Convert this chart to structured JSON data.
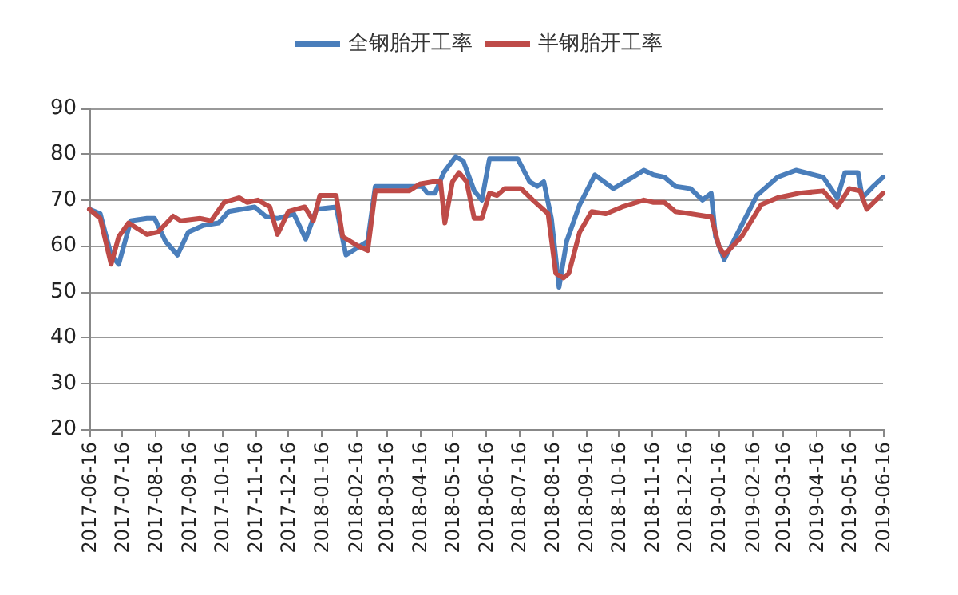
{
  "chart_data": {
    "type": "line",
    "series": [
      {
        "name": "全钢胎开工率",
        "color": "#4a7ebb",
        "x": [
          "2017-06-16",
          "2017-06-26",
          "2017-07-06",
          "2017-07-13",
          "2017-07-24",
          "2017-08-08",
          "2017-08-15",
          "2017-08-25",
          "2017-09-05",
          "2017-09-15",
          "2017-09-29",
          "2017-10-13",
          "2017-10-22",
          "2017-11-15",
          "2017-11-25",
          "2017-12-06",
          "2017-12-21",
          "2018-01-01",
          "2018-01-11",
          "2018-01-29",
          "2018-02-07",
          "2018-02-27",
          "2018-03-06",
          "2018-04-18",
          "2018-04-23",
          "2018-04-30",
          "2018-05-08",
          "2018-05-19",
          "2018-05-26",
          "2018-06-05",
          "2018-06-12",
          "2018-06-19",
          "2018-07-15",
          "2018-07-26",
          "2018-08-02",
          "2018-08-08",
          "2018-08-15",
          "2018-08-22",
          "2018-08-29",
          "2018-09-10",
          "2018-09-24",
          "2018-10-08",
          "2018-10-11",
          "2018-10-29",
          "2018-11-08",
          "2018-11-17",
          "2018-11-27",
          "2018-12-07",
          "2018-12-21",
          "2019-01-01",
          "2019-01-09",
          "2019-01-13",
          "2019-01-21",
          "2019-02-06",
          "2019-02-20",
          "2019-03-11",
          "2019-03-28",
          "2019-04-22",
          "2019-05-05",
          "2019-05-12",
          "2019-05-24",
          "2019-05-28",
          "2019-06-07",
          "2019-06-16"
        ],
        "values": [
          68,
          67,
          58,
          56,
          65.5,
          66,
          66,
          61,
          58,
          63,
          64.5,
          65,
          67.5,
          68.5,
          66.5,
          66,
          67,
          61.5,
          68,
          68.5,
          58,
          61,
          73,
          73,
          71.5,
          71.5,
          76,
          79.5,
          78.5,
          72,
          70,
          79,
          79,
          74,
          73,
          74,
          66,
          51,
          61,
          69,
          75.5,
          73,
          72.5,
          75,
          76.5,
          75.5,
          75,
          73,
          72.5,
          70,
          71.5,
          62,
          57,
          64.5,
          71,
          75,
          76.5,
          75,
          70.5,
          76,
          76,
          70.5,
          73,
          75
        ]
      },
      {
        "name": "半钢胎开工率",
        "color": "#be4b48",
        "x": [
          "2017-06-16",
          "2017-06-26",
          "2017-07-06",
          "2017-07-13",
          "2017-07-22",
          "2017-08-08",
          "2017-08-18",
          "2017-09-01",
          "2017-09-08",
          "2017-09-26",
          "2017-10-06",
          "2017-10-18",
          "2017-11-01",
          "2017-11-08",
          "2017-11-18",
          "2017-11-29",
          "2017-12-06",
          "2017-12-16",
          "2017-12-31",
          "2018-01-08",
          "2018-01-14",
          "2018-01-29",
          "2018-02-04",
          "2018-02-18",
          "2018-02-27",
          "2018-03-06",
          "2018-04-06",
          "2018-04-16",
          "2018-04-28",
          "2018-05-05",
          "2018-05-09",
          "2018-05-16",
          "2018-05-22",
          "2018-05-29",
          "2018-06-05",
          "2018-06-12",
          "2018-06-19",
          "2018-06-26",
          "2018-07-03",
          "2018-07-18",
          "2018-07-29",
          "2018-08-12",
          "2018-08-19",
          "2018-08-26",
          "2018-08-31",
          "2018-09-10",
          "2018-09-21",
          "2018-10-04",
          "2018-10-19",
          "2018-11-08",
          "2018-11-17",
          "2018-11-27",
          "2018-12-07",
          "2018-12-21",
          "2019-01-04",
          "2019-01-09",
          "2019-01-16",
          "2019-01-21",
          "2019-02-06",
          "2019-02-24",
          "2019-03-11",
          "2019-03-31",
          "2019-04-22",
          "2019-05-05",
          "2019-05-16",
          "2019-05-26",
          "2019-06-01",
          "2019-06-16"
        ],
        "values": [
          68,
          66,
          56,
          62,
          65,
          62.5,
          63,
          66.5,
          65.5,
          66,
          65.5,
          69.5,
          70.5,
          69.5,
          70,
          68.5,
          62.5,
          67.5,
          68.5,
          65.5,
          71,
          71,
          62,
          60,
          59,
          72,
          72,
          73.5,
          74,
          74,
          65,
          74,
          76,
          74,
          66,
          66,
          71.5,
          71,
          72.5,
          72.5,
          70,
          67,
          54,
          53,
          54,
          63,
          67.5,
          67,
          68.5,
          70,
          69.5,
          69.5,
          67.5,
          67,
          66.5,
          66.5,
          60,
          58,
          62,
          69,
          70.5,
          71.5,
          72,
          68.5,
          72.5,
          72,
          68,
          71.5
        ]
      }
    ],
    "xlim": [
      "2017-06-16",
      "2019-06-16"
    ],
    "xticks": [
      "2017-06-16",
      "2017-07-16",
      "2017-08-16",
      "2017-09-16",
      "2017-10-16",
      "2017-11-16",
      "2017-12-16",
      "2018-01-16",
      "2018-02-16",
      "2018-03-16",
      "2018-04-16",
      "2018-05-16",
      "2018-06-16",
      "2018-07-16",
      "2018-08-16",
      "2018-09-16",
      "2018-10-16",
      "2018-11-16",
      "2018-12-16",
      "2019-01-16",
      "2019-02-16",
      "2019-03-16",
      "2019-04-16",
      "2019-05-16",
      "2019-06-16"
    ],
    "ylim": [
      20,
      90
    ],
    "yticks": [
      20,
      30,
      40,
      50,
      60,
      70,
      80,
      90
    ],
    "grid": "y",
    "legend": "top",
    "marker": "none",
    "line_style": "solid"
  }
}
